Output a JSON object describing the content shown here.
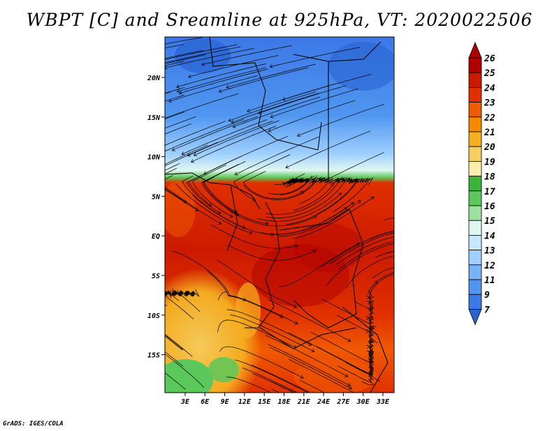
{
  "title": "WBPT [C] and Sreamline at 925hPa, VT: 2020022506",
  "credit": "GrADS: IGES/COLA",
  "map": {
    "lon_ticks": [
      "3E",
      "6E",
      "9E",
      "12E",
      "15E",
      "18E",
      "21E",
      "24E",
      "27E",
      "30E",
      "33E"
    ],
    "lat_ticks": [
      "20N",
      "15N",
      "10N",
      "5N",
      "EQ",
      "5S",
      "10S",
      "15S"
    ]
  },
  "colorbar": {
    "labels": [
      "26",
      "25",
      "24",
      "23",
      "22",
      "21",
      "20",
      "19",
      "18",
      "17",
      "16",
      "15",
      "14",
      "13",
      "12",
      "11",
      "9",
      "7"
    ],
    "colors": [
      "#b00000",
      "#cc1a00",
      "#e03000",
      "#f05a00",
      "#f58a00",
      "#f5b020",
      "#f5d060",
      "#fbeeaa",
      "#3cb43c",
      "#5ac85a",
      "#9ee09e",
      "#e0f7f0",
      "#c8e6ff",
      "#a0d0ff",
      "#78b4f5",
      "#5096f0",
      "#3c78e6",
      "#2864d2"
    ]
  },
  "chart_data": {
    "type": "heatmap",
    "title": "WBPT [C] and Sreamline at 925hPa, VT: 2020022506",
    "x_range": [
      "0E",
      "35E"
    ],
    "y_range": [
      "19S",
      "24N"
    ],
    "legend": "right"
  }
}
